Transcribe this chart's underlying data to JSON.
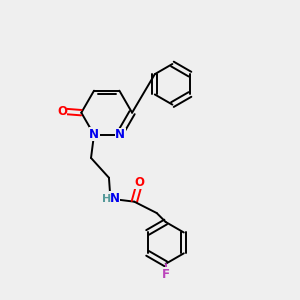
{
  "background_color": "#efefef",
  "fig_size": [
    3.0,
    3.0
  ],
  "dpi": 100,
  "colors": {
    "bond": "#000000",
    "N": "#0000ee",
    "O": "#ff0000",
    "F": "#bb44bb",
    "H_label": "#559999",
    "bg": "#efefef"
  },
  "lw": 1.4,
  "fs": 8.5
}
